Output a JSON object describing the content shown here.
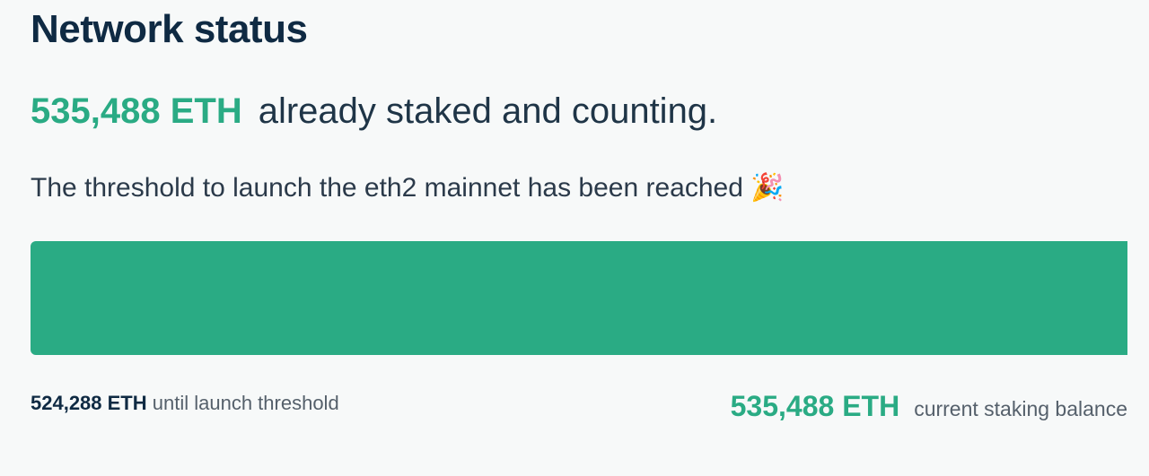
{
  "header": {
    "title": "Network status"
  },
  "headline": {
    "amount": "535,488 ETH",
    "text": "already staked and counting."
  },
  "subtitle": {
    "text": "The threshold to launch the eth2 mainnet has been reached",
    "emoji": "🎉"
  },
  "progress": {
    "percent": 100,
    "fill_color": "#2aab84"
  },
  "footer": {
    "threshold_amount": "524,288 ETH",
    "threshold_label": "until launch threshold",
    "balance_amount": "535,488 ETH",
    "balance_label": "current staking balance"
  },
  "colors": {
    "accent": "#2aab84",
    "title": "#0f2a43"
  }
}
